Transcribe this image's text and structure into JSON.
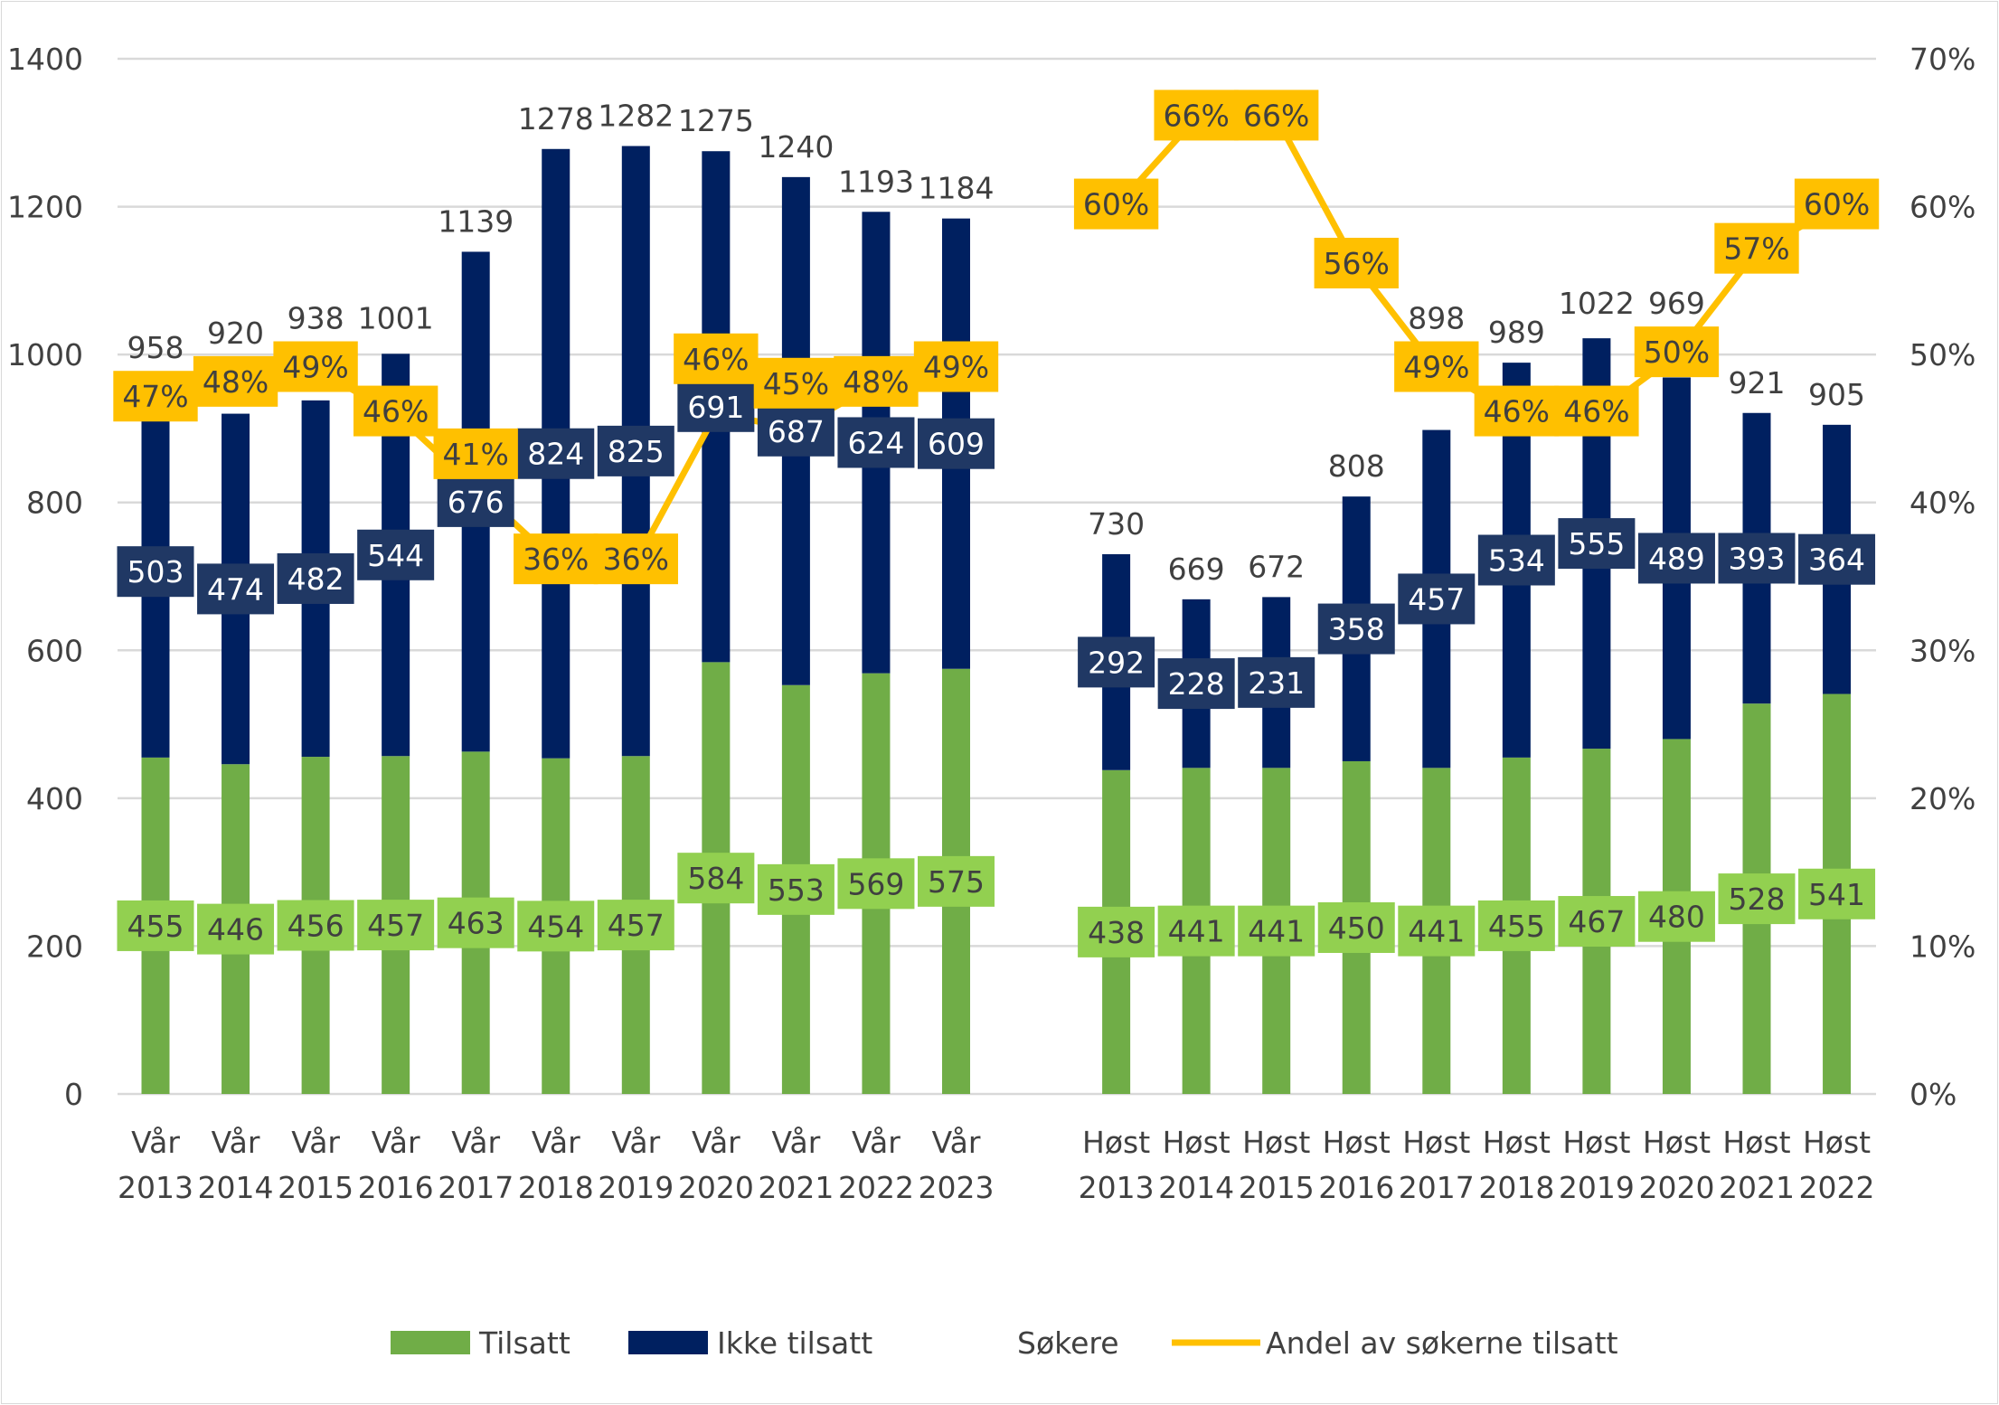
{
  "chart_data": {
    "type": "bar",
    "stacked": true,
    "categories": [
      "Vår 2013",
      "Vår 2014",
      "Vår 2015",
      "Vår 2016",
      "Vår 2017",
      "Vår 2018",
      "Vår 2019",
      "Vår 2020",
      "Vår 2021",
      "Vår 2022",
      "Vår 2023",
      "",
      "Høst 2013",
      "Høst 2014",
      "Høst 2015",
      "Høst 2016",
      "Høst 2017",
      "Høst 2018",
      "Høst 2019",
      "Høst 2020",
      "Høst 2021",
      "Høst 2022"
    ],
    "series": [
      {
        "name": "Tilsatt",
        "type": "bar",
        "axis": "left",
        "color": "#70ad47",
        "label_bg": "#92d050",
        "values": [
          455,
          446,
          456,
          457,
          463,
          454,
          457,
          584,
          553,
          569,
          575,
          null,
          438,
          441,
          441,
          450,
          441,
          455,
          467,
          480,
          528,
          541
        ]
      },
      {
        "name": "Ikke tilsatt",
        "type": "bar",
        "axis": "left",
        "color": "#002060",
        "label_bg": "#203864",
        "values": [
          503,
          474,
          482,
          544,
          676,
          824,
          825,
          691,
          687,
          624,
          609,
          null,
          292,
          228,
          231,
          358,
          457,
          534,
          555,
          489,
          393,
          364
        ]
      },
      {
        "name": "Søkere",
        "type": "labels",
        "axis": "left",
        "values": [
          958,
          920,
          938,
          1001,
          1139,
          1278,
          1282,
          1275,
          1240,
          1193,
          1184,
          null,
          730,
          669,
          672,
          808,
          898,
          989,
          1022,
          969,
          921,
          905
        ]
      },
      {
        "name": "Andel av søkerne tilsatt",
        "type": "line",
        "axis": "right",
        "color": "#ffc000",
        "values": [
          47,
          48,
          49,
          46,
          41,
          36,
          36,
          46,
          45,
          48,
          49,
          null,
          60,
          66,
          66,
          56,
          49,
          46,
          46,
          50,
          57,
          60
        ]
      }
    ],
    "y_left": {
      "range": [
        0,
        1400
      ],
      "ticks": [
        "0",
        "200",
        "400",
        "600",
        "800",
        "1000",
        "1200",
        "1400"
      ]
    },
    "y_right": {
      "range": [
        0,
        70
      ],
      "ticks": [
        "0%",
        "10%",
        "20%",
        "30%",
        "40%",
        "50%",
        "60%",
        "70%"
      ]
    },
    "grid": true,
    "legend": "bottom",
    "legend_items": [
      "Tilsatt",
      "Ikke tilsatt",
      "Søkere",
      "Andel av søkerne tilsatt"
    ]
  }
}
